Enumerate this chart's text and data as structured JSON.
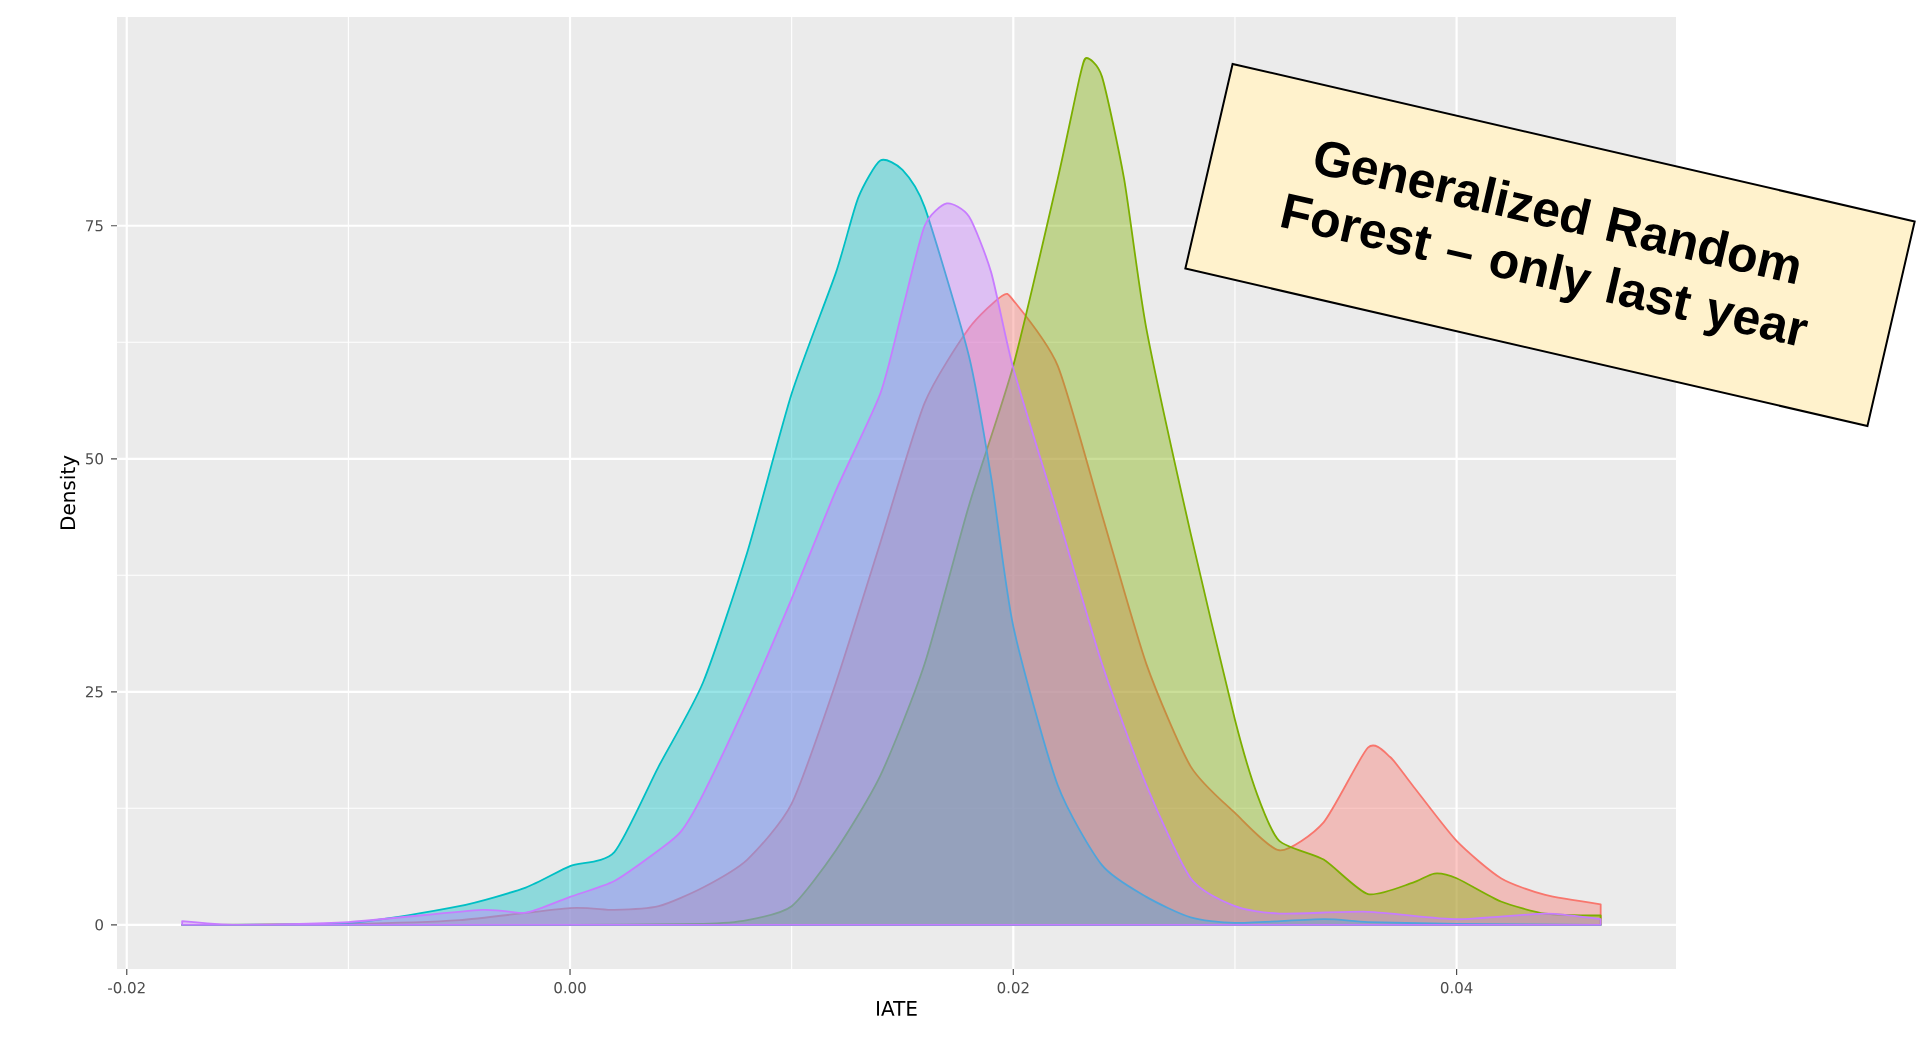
{
  "chart_data": {
    "type": "area",
    "xlabel": "IATE",
    "ylabel": "Density",
    "annotations": [
      "Generalized Random Forest – only last year"
    ],
    "xlim": [
      -0.02044,
      0.0499
    ],
    "ylim": [
      -4.74,
      97.4
    ],
    "xticks": [
      {
        "value": -0.02,
        "label": "-0.02"
      },
      {
        "value": 0,
        "label": "0.00"
      },
      {
        "value": 0.02,
        "label": "0.02"
      },
      {
        "value": 0.04,
        "label": "0.04"
      }
    ],
    "yticks": [
      0,
      25,
      50,
      75
    ],
    "grid": true,
    "series": [
      {
        "color": "#f8766d",
        "x": [
          -0.0175,
          -0.01,
          -0.005,
          0,
          0.002,
          0.004,
          0.006,
          0.008,
          0.01,
          0.012,
          0.014,
          0.016,
          0.018,
          0.0195,
          0.02,
          0.022,
          0.024,
          0.026,
          0.028,
          0.03,
          0.032,
          0.034,
          0.036,
          0.037,
          0.038,
          0.04,
          0.042,
          0.044,
          0.0465
        ],
        "values": [
          0,
          0.1,
          0.5,
          1.8,
          1.6,
          2,
          4,
          7,
          13,
          26,
          41,
          56,
          64,
          67.5,
          67,
          60,
          44,
          28,
          17,
          12,
          8,
          11,
          19,
          18,
          15,
          9,
          5,
          3.2,
          2.2
        ]
      },
      {
        "color": "#7cae00",
        "x": [
          -0.0175,
          -0.01,
          0,
          0.006,
          0.008,
          0.01,
          0.012,
          0.014,
          0.016,
          0.018,
          0.02,
          0.022,
          0.023,
          0.0233,
          0.024,
          0.025,
          0.026,
          0.028,
          0.03,
          0.031,
          0.032,
          0.034,
          0.036,
          0.038,
          0.039,
          0.04,
          0.042,
          0.044,
          0.0465
        ],
        "values": [
          0,
          0,
          0,
          0.1,
          0.5,
          2,
          8,
          16,
          28,
          45,
          60,
          80,
          91,
          93,
          91,
          80,
          64,
          42,
          22,
          14,
          9,
          7,
          3.3,
          4.5,
          5.5,
          5,
          2.5,
          1.2,
          1
        ]
      },
      {
        "color": "#00bfc4",
        "x": [
          -0.0175,
          -0.01,
          -0.005,
          -0.002,
          0,
          0.002,
          0.004,
          0.006,
          0.008,
          0.01,
          0.012,
          0.013,
          0.014,
          0.015,
          0.016,
          0.018,
          0.019,
          0.02,
          0.022,
          0.024,
          0.026,
          0.028,
          0.03,
          0.034,
          0.036,
          0.04,
          0.0465
        ],
        "values": [
          0,
          0.2,
          2,
          4,
          6.3,
          7.8,
          17,
          26,
          40,
          57,
          70,
          78,
          82,
          81,
          77,
          61,
          48,
          32,
          15,
          6.4,
          3,
          0.8,
          0.2,
          0.6,
          0.3,
          0.1,
          0
        ]
      },
      {
        "color": "#c77cff",
        "x": [
          -0.0175,
          -0.015,
          -0.01,
          -0.004,
          -0.002,
          0,
          0.002,
          0.004,
          0.005,
          0.006,
          0.008,
          0.01,
          0.012,
          0.014,
          0.015,
          0.016,
          0.017,
          0.018,
          0.019,
          0.02,
          0.022,
          0.024,
          0.026,
          0.028,
          0.03,
          0.032,
          0.036,
          0.04,
          0.044,
          0.0465
        ],
        "values": [
          0.4,
          0,
          0.3,
          1.6,
          1.3,
          3,
          4.7,
          8,
          10,
          14,
          24,
          35,
          46.6,
          57,
          66,
          75,
          77.4,
          76,
          70,
          59.7,
          44,
          28,
          15,
          5,
          2,
          1.2,
          1.4,
          0.6,
          1.2,
          0.6
        ]
      }
    ]
  }
}
